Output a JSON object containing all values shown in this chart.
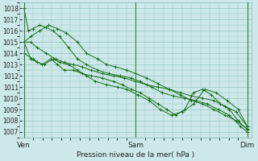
{
  "background_color": "#cce8e8",
  "grid_color": "#88bbbb",
  "line_color": "#1a6e1a",
  "xlabel": "Pression niveau de la mer( hPa )",
  "ylim": [
    1006.5,
    1018.5
  ],
  "yticks": [
    1007,
    1008,
    1009,
    1010,
    1011,
    1012,
    1013,
    1014,
    1015,
    1016,
    1017,
    1018
  ],
  "xtick_labels": [
    "Ven",
    "Sam",
    "Dim"
  ],
  "xtick_positions": [
    0,
    0.5,
    1.0
  ],
  "xlim": [
    -0.02,
    1.02
  ],
  "series1_x": [
    0.0,
    0.02,
    0.04,
    0.07,
    0.1,
    0.13,
    0.16,
    0.2,
    0.24,
    0.28,
    0.33,
    0.38,
    0.43,
    0.48,
    0.52,
    0.57,
    0.62,
    0.67,
    0.72,
    0.77,
    0.82,
    0.87,
    0.92,
    0.97,
    1.0
  ],
  "series1_y": [
    1018.0,
    1016.0,
    1016.2,
    1016.5,
    1016.3,
    1016.0,
    1015.5,
    1014.5,
    1013.5,
    1013.0,
    1012.5,
    1012.2,
    1012.0,
    1011.8,
    1011.5,
    1011.0,
    1010.5,
    1010.2,
    1010.0,
    1009.8,
    1009.5,
    1009.0,
    1008.5,
    1007.5,
    1007.0
  ],
  "series2_x": [
    0.0,
    0.03,
    0.06,
    0.1,
    0.14,
    0.18,
    0.22,
    0.26,
    0.3,
    0.35,
    0.4,
    0.45,
    0.5,
    0.55,
    0.6,
    0.65,
    0.7,
    0.75,
    0.8,
    0.85,
    0.9,
    0.95,
    1.0
  ],
  "series2_y": [
    1015.0,
    1015.0,
    1014.5,
    1014.0,
    1013.5,
    1013.2,
    1013.0,
    1012.8,
    1012.5,
    1012.2,
    1012.0,
    1011.8,
    1011.5,
    1011.2,
    1011.0,
    1010.8,
    1010.5,
    1010.2,
    1010.0,
    1009.8,
    1009.3,
    1008.8,
    1007.5
  ],
  "series3_x": [
    0.0,
    0.04,
    0.08,
    0.12,
    0.15,
    0.18,
    0.22,
    0.26,
    0.3,
    0.35,
    0.4,
    0.44,
    0.48,
    0.52,
    0.56,
    0.6,
    0.64,
    0.68,
    0.72,
    0.76,
    0.8,
    0.84,
    0.88,
    0.92,
    0.96,
    1.0
  ],
  "series3_y": [
    1014.0,
    1013.5,
    1013.0,
    1013.5,
    1013.0,
    1012.5,
    1012.5,
    1012.2,
    1012.0,
    1011.8,
    1011.5,
    1011.2,
    1010.8,
    1010.5,
    1010.0,
    1009.5,
    1009.0,
    1008.5,
    1009.0,
    1010.5,
    1010.8,
    1010.3,
    1009.5,
    1009.0,
    1008.0,
    1007.2
  ],
  "series4_x": [
    0.0,
    0.03,
    0.07,
    0.11,
    0.15,
    0.19,
    0.24,
    0.28,
    0.33,
    0.37,
    0.41,
    0.46,
    0.5,
    0.55,
    0.6,
    0.65,
    0.7,
    0.75,
    0.8,
    0.85,
    0.9,
    0.95,
    1.0
  ],
  "series4_y": [
    1015.0,
    1015.5,
    1016.0,
    1016.5,
    1016.2,
    1015.8,
    1015.0,
    1014.0,
    1013.5,
    1013.0,
    1012.8,
    1012.5,
    1012.2,
    1011.8,
    1011.3,
    1010.8,
    1010.3,
    1009.8,
    1009.5,
    1009.0,
    1008.5,
    1008.0,
    1007.3
  ],
  "series5_x": [
    0.0,
    0.03,
    0.06,
    0.09,
    0.13,
    0.16,
    0.2,
    0.24,
    0.28,
    0.32,
    0.37,
    0.42,
    0.46,
    0.51,
    0.56,
    0.61,
    0.66,
    0.71,
    0.76,
    0.81,
    0.86,
    0.91,
    0.96,
    1.0
  ],
  "series5_y": [
    1015.0,
    1013.5,
    1013.2,
    1013.0,
    1013.5,
    1013.2,
    1013.0,
    1012.5,
    1012.0,
    1011.5,
    1011.2,
    1011.0,
    1010.8,
    1010.3,
    1009.8,
    1009.0,
    1008.5,
    1008.8,
    1009.5,
    1010.8,
    1010.5,
    1009.8,
    1009.0,
    1007.5
  ]
}
